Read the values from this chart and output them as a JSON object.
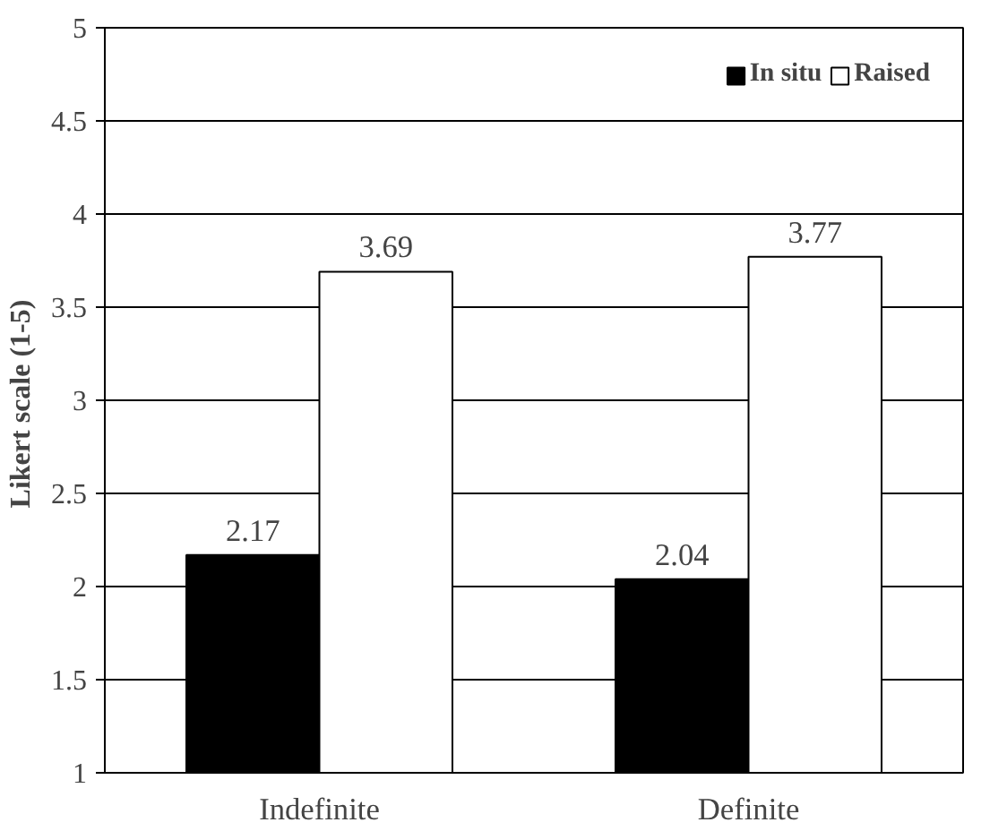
{
  "chart_data": {
    "type": "bar",
    "categories": [
      "Indefinite",
      "Definite"
    ],
    "series": [
      {
        "name": "In situ",
        "color": "#000000",
        "values": [
          2.17,
          2.04
        ]
      },
      {
        "name": "Raised",
        "color": "#ffffff",
        "values": [
          3.69,
          3.77
        ]
      }
    ],
    "ylabel": "Likert  scale (1-5)",
    "ylim": [
      1,
      5
    ],
    "yticks": [
      1,
      1.5,
      2,
      2.5,
      3,
      3.5,
      4,
      4.5,
      5
    ],
    "grid": "y",
    "legend": "top right",
    "data_labels": true
  }
}
